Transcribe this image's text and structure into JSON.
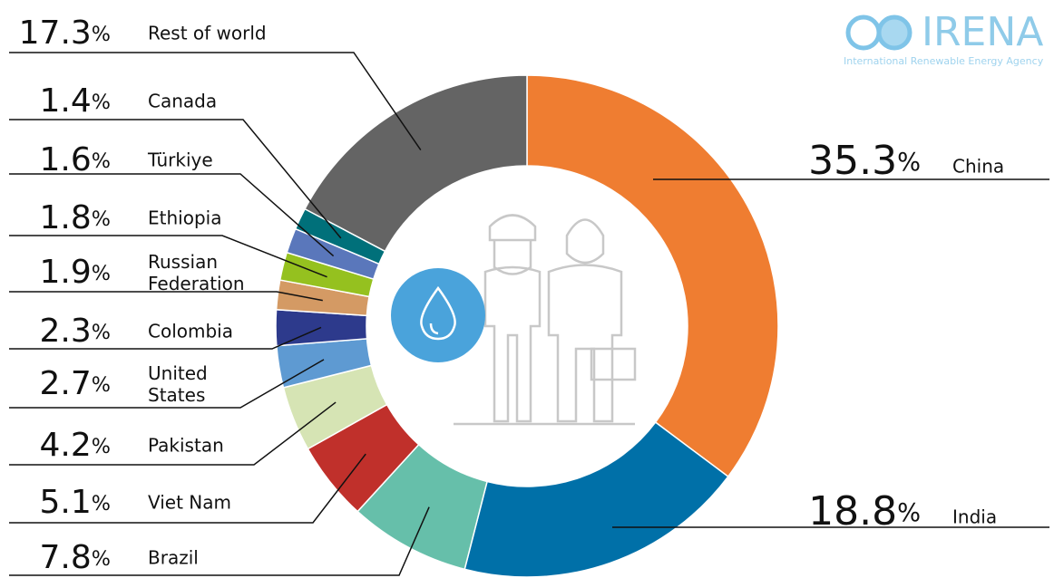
{
  "chart_data": {
    "type": "donut",
    "categories": [
      "China",
      "India",
      "Brazil",
      "Viet Nam",
      "Pakistan",
      "United States",
      "Colombia",
      "Russian Federation",
      "Ethiopia",
      "Türkiye",
      "Canada",
      "Rest of world"
    ],
    "values": [
      35.3,
      18.8,
      7.8,
      5.1,
      4.2,
      2.7,
      2.3,
      1.9,
      1.8,
      1.6,
      1.4,
      17.3
    ],
    "value_labels": [
      "35.3%",
      "18.8%",
      "7.8%",
      "5.1%",
      "4.2%",
      "2.7%",
      "2.3%",
      "1.9%",
      "1.8%",
      "1.6%",
      "1.4%",
      "17.3%"
    ],
    "colors": [
      "#ef7d31",
      "#0070a8",
      "#66bfaa",
      "#c0302b",
      "#d6e4b4",
      "#5e9ad2",
      "#2d3a8c",
      "#d49a64",
      "#95c11f",
      "#5a77bb",
      "#00707a",
      "#646464"
    ]
  },
  "logo": {
    "name": "IRENA",
    "tagline": "International Renewable Energy Agency"
  }
}
